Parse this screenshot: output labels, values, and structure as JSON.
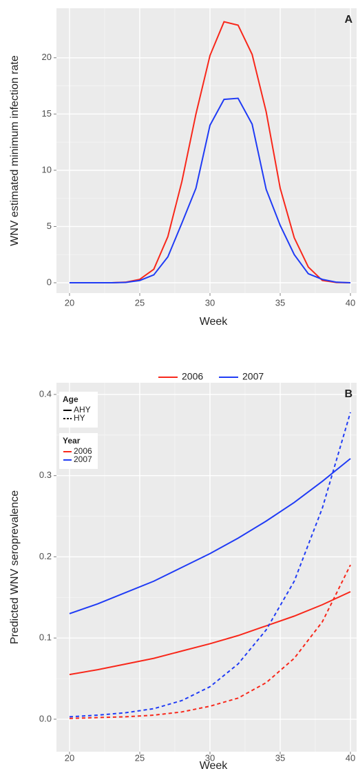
{
  "chart_data": [
    {
      "type": "line",
      "annotation": "A",
      "xlabel": "Week",
      "ylabel": "WNV estimated minimum infection rate",
      "x": [
        20,
        21,
        22,
        23,
        24,
        25,
        26,
        27,
        28,
        29,
        30,
        31,
        32,
        33,
        34,
        35,
        36,
        37,
        38,
        39,
        40
      ],
      "series": [
        {
          "name": "2006",
          "color": "#f8271a",
          "dash": "solid",
          "values": [
            0,
            0,
            0,
            0,
            0.05,
            0.3,
            1.2,
            4.1,
            9,
            15,
            20.2,
            23.2,
            22.9,
            20.3,
            15.2,
            8.4,
            4,
            1.4,
            0.2,
            0.02,
            0
          ]
        },
        {
          "name": "2007",
          "color": "#1f3bf5",
          "dash": "solid",
          "values": [
            0,
            0,
            0,
            0,
            0.03,
            0.2,
            0.7,
            2.3,
            5.3,
            8.4,
            14,
            16.3,
            16.4,
            14.1,
            8.3,
            5.1,
            2.5,
            0.8,
            0.3,
            0.05,
            0
          ]
        }
      ],
      "xlim": [
        19.07,
        40.44
      ],
      "xticks": [
        20,
        25,
        30,
        35,
        40
      ],
      "ylim": [
        -0.92,
        24.4
      ],
      "yticks": [
        0,
        5,
        10,
        15,
        20
      ],
      "grid": true,
      "legend": "bottom"
    },
    {
      "type": "line",
      "annotation": "B",
      "xlabel": "Week",
      "ylabel": "Predicted WNV seroprevalence",
      "x": [
        20,
        22,
        24,
        26,
        28,
        30,
        32,
        34,
        36,
        38,
        40
      ],
      "series": [
        {
          "color": "#f8271a",
          "dash": "solid",
          "values": [
            0.055,
            0.061,
            0.068,
            0.075,
            0.084,
            0.093,
            0.103,
            0.115,
            0.127,
            0.141,
            0.157
          ]
        },
        {
          "color": "#1f3bf5",
          "dash": "solid",
          "values": [
            0.13,
            0.142,
            0.156,
            0.17,
            0.187,
            0.204,
            0.223,
            0.244,
            0.267,
            0.293,
            0.321
          ]
        },
        {
          "color": "#f8271a",
          "dash": "dashed",
          "values": [
            0.001,
            0.002,
            0.003,
            0.005,
            0.009,
            0.016,
            0.026,
            0.045,
            0.075,
            0.12,
            0.19
          ]
        },
        {
          "color": "#1f3bf5",
          "dash": "dashed",
          "values": [
            0.003,
            0.005,
            0.008,
            0.013,
            0.023,
            0.04,
            0.068,
            0.11,
            0.17,
            0.26,
            0.378
          ]
        }
      ],
      "xlim": [
        19.07,
        40.44
      ],
      "xticks": [
        20,
        25,
        30,
        35,
        40
      ],
      "ylim": [
        -0.04,
        0.4144
      ],
      "yticks": [
        {
          "value": 0,
          "label": "0.0"
        },
        0.1,
        0.2,
        0.3,
        0.4
      ],
      "grid": true,
      "legend": {
        "position": "top-left",
        "groups": [
          {
            "title": "Age",
            "entries": [
              {
                "label": "AHY",
                "dash": "solid",
                "color": "#000000"
              },
              {
                "label": "HY",
                "dash": "dashed",
                "color": "#000000"
              }
            ]
          },
          {
            "title": "Year",
            "entries": [
              {
                "label": "2006",
                "dash": "solid",
                "color": "#f8271a"
              },
              {
                "label": "2007",
                "dash": "solid",
                "color": "#1f3bf5"
              }
            ]
          }
        ]
      }
    }
  ]
}
